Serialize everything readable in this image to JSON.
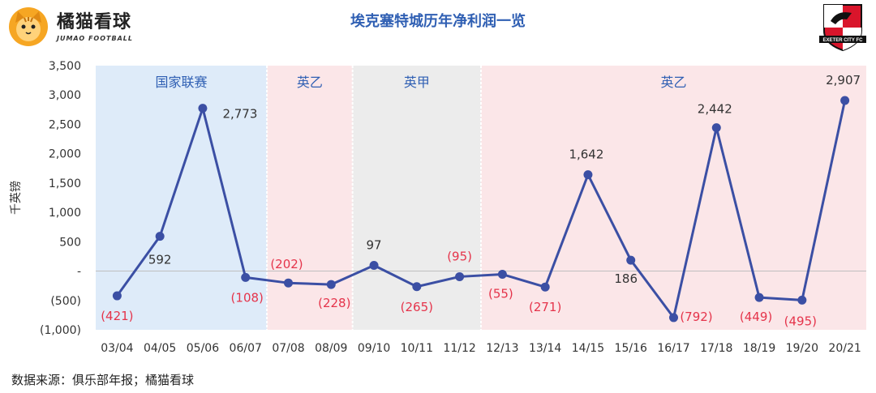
{
  "brand": {
    "name": "橘猫看球",
    "sub": "JUMAO FOOTBALL"
  },
  "title": "埃克塞特城历年净利润一览",
  "crest": {
    "text": "EXETER CITY FC"
  },
  "source": "数据来源：俱乐部年报；橘猫看球",
  "chart_data": {
    "type": "line",
    "title": "埃克塞特城历年净利润一览",
    "xlabel": "",
    "ylabel": "千英镑",
    "ylim": [
      -1000,
      3500
    ],
    "yticks": [
      {
        "value": 3500,
        "label": "3,500"
      },
      {
        "value": 3000,
        "label": "3,000"
      },
      {
        "value": 2500,
        "label": "2,500"
      },
      {
        "value": 2000,
        "label": "2,000"
      },
      {
        "value": 1500,
        "label": "1,500"
      },
      {
        "value": 1000,
        "label": "1,000"
      },
      {
        "value": 500,
        "label": "500"
      },
      {
        "value": 0,
        "label": "-"
      },
      {
        "value": -500,
        "label": "(500)"
      },
      {
        "value": -1000,
        "label": "(1,000)"
      }
    ],
    "categories": [
      "03/04",
      "04/05",
      "05/06",
      "06/07",
      "07/08",
      "08/09",
      "09/10",
      "10/11",
      "11/12",
      "12/13",
      "13/14",
      "14/15",
      "15/16",
      "16/17",
      "17/18",
      "18/19",
      "19/20",
      "20/21"
    ],
    "values": [
      -421,
      592,
      2773,
      -108,
      -202,
      -228,
      97,
      -265,
      -95,
      -55,
      -271,
      1642,
      186,
      -792,
      2442,
      -449,
      -495,
      2907
    ],
    "data_labels": [
      "(421)",
      "592",
      "2,773",
      "(108)",
      "(202)",
      "(228)",
      "97",
      "(265)",
      "(95)",
      "(55)",
      "(271)",
      "1,642",
      "186",
      "(792)",
      "2,442",
      "(449)",
      "(495)",
      "2,907"
    ],
    "bands": [
      {
        "label": "国家联赛",
        "from": 0,
        "to": 3,
        "color": "#deebf9"
      },
      {
        "label": "英乙",
        "from": 4,
        "to": 5,
        "color": "#fbe6e8"
      },
      {
        "label": "英甲",
        "from": 6,
        "to": 8,
        "color": "#ececec"
      },
      {
        "label": "英乙",
        "from": 9,
        "to": 17,
        "color": "#fbe6e8"
      }
    ],
    "colors": {
      "line": "#3b4fa4",
      "negative_label": "#e5344b",
      "positive_label": "#333333",
      "band_label": "#2f5fb3"
    },
    "grid": false
  }
}
